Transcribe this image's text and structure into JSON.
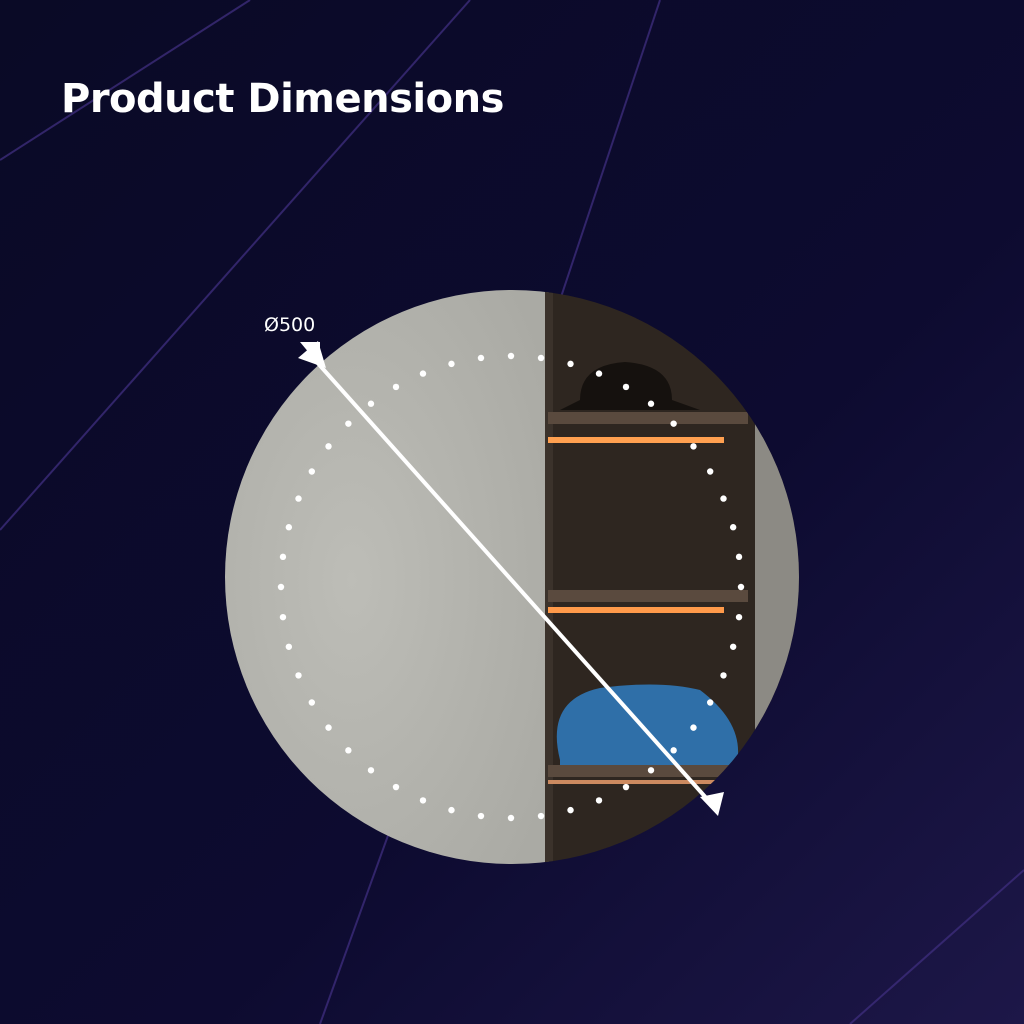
{
  "title": "Product Dimensions",
  "dimension_label": "Ø500",
  "colors": {
    "background": "#0b0a2a",
    "mirror": "#b9b9b3",
    "cabinet": "#2e2620",
    "shelf_light": "#ff9a4a",
    "bag": "#2f6fa8",
    "accent_lines": "#4a2f8f"
  },
  "icons": [
    "diameter-arrow-icon"
  ]
}
